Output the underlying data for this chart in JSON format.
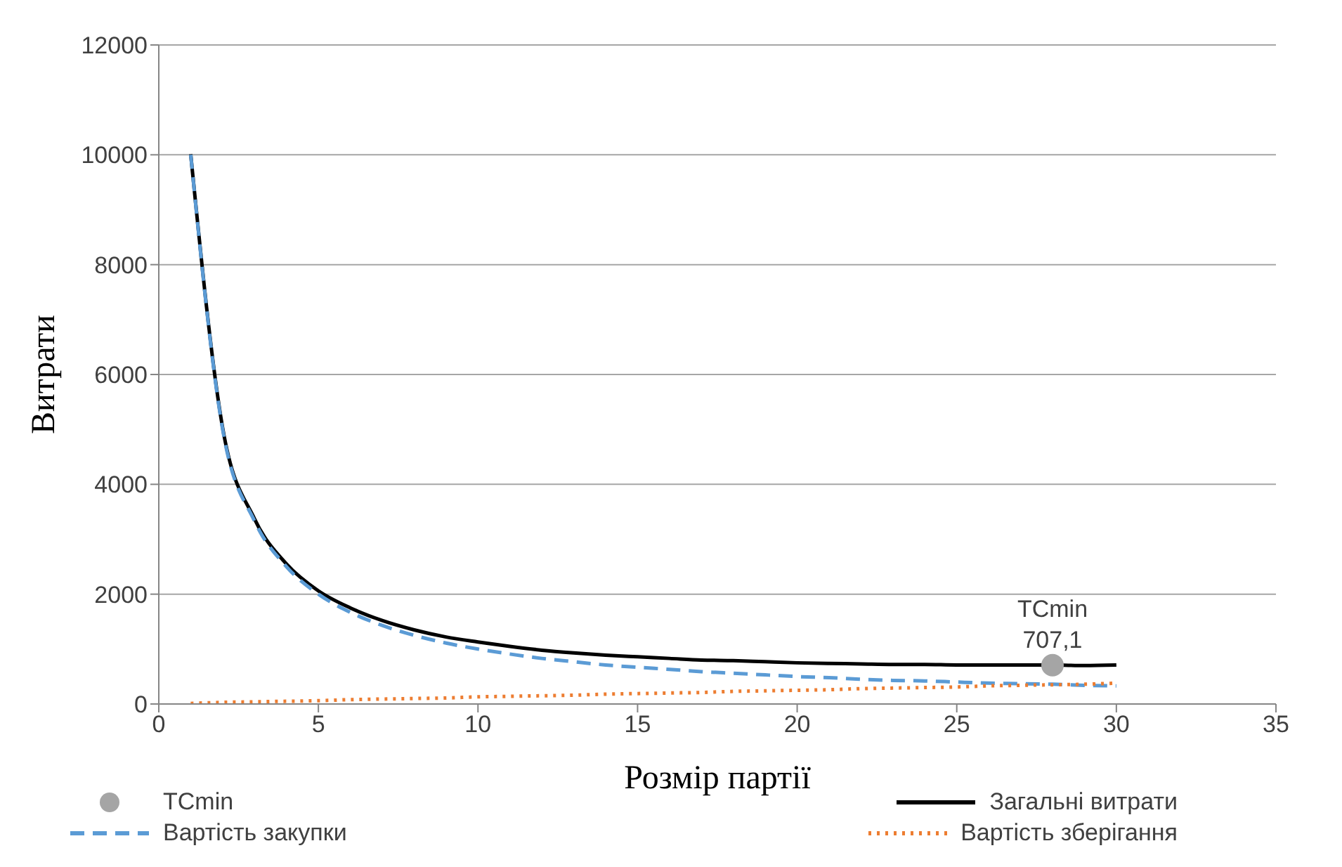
{
  "chart_data": {
    "type": "line",
    "xlabel": "Розмір партії",
    "ylabel": "Витрати",
    "x": [
      1,
      2,
      3,
      4,
      5,
      6,
      7,
      8,
      9,
      10,
      11,
      12,
      13,
      14,
      15,
      16,
      17,
      18,
      19,
      20,
      21,
      22,
      23,
      24,
      25,
      26,
      27,
      28,
      29,
      30
    ],
    "xlim": [
      0,
      35
    ],
    "xticks": [
      0,
      5,
      10,
      15,
      20,
      25,
      30,
      35
    ],
    "ylim": [
      0,
      12000
    ],
    "yticks": [
      0,
      2000,
      4000,
      6000,
      8000,
      10000,
      12000
    ],
    "grid": "y",
    "legend": "bottom",
    "marker": "none",
    "series": [
      {
        "name": "TCmin",
        "type": "scatter",
        "color": "#a5a5a5",
        "x": [
          28
        ],
        "values": [
          707.1
        ],
        "value_labels": [
          "707,1"
        ],
        "marker": "circle"
      },
      {
        "name": "Загальні витрати",
        "color": "#000000",
        "line_style": "solid",
        "values": [
          10010,
          5030,
          3370,
          2550,
          2060,
          1750,
          1520,
          1350,
          1220,
          1130,
          1050,
          980,
          930,
          890,
          860,
          830,
          800,
          790,
          770,
          750,
          740,
          730,
          720,
          720,
          710,
          710,
          710,
          710,
          700,
          710
        ]
      },
      {
        "name": "Вартість закупки",
        "color": "#5b9bd5",
        "line_style": "dashed",
        "values": [
          10000,
          5000,
          3330,
          2500,
          2000,
          1670,
          1430,
          1250,
          1110,
          1000,
          910,
          830,
          770,
          710,
          670,
          630,
          590,
          560,
          530,
          500,
          480,
          450,
          430,
          420,
          400,
          380,
          370,
          360,
          340,
          330
        ]
      },
      {
        "name": "Вартість зберігання",
        "color": "#ed7d31",
        "line_style": "dotted",
        "values": [
          10,
          30,
          40,
          50,
          60,
          80,
          90,
          100,
          110,
          130,
          140,
          150,
          160,
          180,
          190,
          200,
          210,
          230,
          240,
          250,
          260,
          280,
          290,
          300,
          310,
          330,
          340,
          350,
          360,
          380
        ]
      }
    ]
  }
}
